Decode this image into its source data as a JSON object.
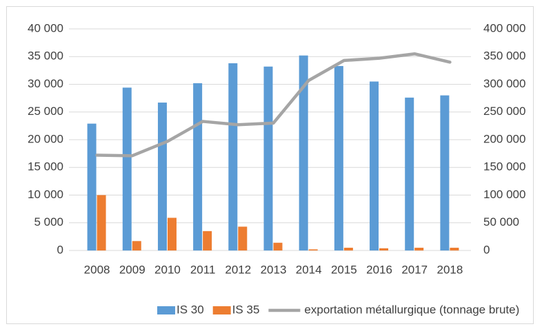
{
  "chart_data": {
    "type": "bar_line",
    "categories": [
      "2008",
      "2009",
      "2010",
      "2011",
      "2012",
      "2013",
      "2014",
      "2015",
      "2016",
      "2017",
      "2018"
    ],
    "series": [
      {
        "name": "IS 30",
        "color": "#5b9bd5",
        "type": "bar",
        "values": [
          22900,
          29400,
          26700,
          30200,
          33800,
          33200,
          35200,
          33300,
          30500,
          27600,
          28000
        ]
      },
      {
        "name": "IS 35",
        "color": "#ed7d31",
        "type": "bar",
        "values": [
          10000,
          1700,
          5900,
          3500,
          4300,
          1400,
          200,
          500,
          400,
          500,
          500
        ]
      },
      {
        "name": "exportation métallurgique (tonnage brute)",
        "color": "#a5a5a5",
        "type": "line",
        "axis": "y2",
        "values": [
          172000,
          171000,
          197000,
          233000,
          227000,
          230000,
          307000,
          343000,
          347000,
          355000,
          340000
        ]
      }
    ],
    "ylim": [
      0,
      40000
    ],
    "yticks": [
      0,
      {
        "value": 5000,
        "label": "5 000"
      },
      {
        "value": 10000,
        "label": "10 000"
      },
      {
        "value": 15000,
        "label": "15 000"
      },
      {
        "value": 20000,
        "label": "20 000"
      },
      {
        "value": 25000,
        "label": "25 000"
      },
      {
        "value": 30000,
        "label": "30 000"
      },
      {
        "value": 35000,
        "label": "35 000"
      },
      {
        "value": 40000,
        "label": "40 000"
      }
    ],
    "y2lim": [
      0,
      400000
    ],
    "y2ticks": [
      0,
      {
        "value": 50000,
        "label": "50 000"
      },
      {
        "value": 100000,
        "label": "100 000"
      },
      {
        "value": 150000,
        "label": "150 000"
      },
      {
        "value": 200000,
        "label": "200 000"
      },
      {
        "value": 250000,
        "label": "250 000"
      },
      {
        "value": 300000,
        "label": "300 000"
      },
      {
        "value": 350000,
        "label": "350 000"
      },
      {
        "value": 400000,
        "label": "400 000"
      }
    ],
    "grid": true,
    "legend": "bottom"
  }
}
